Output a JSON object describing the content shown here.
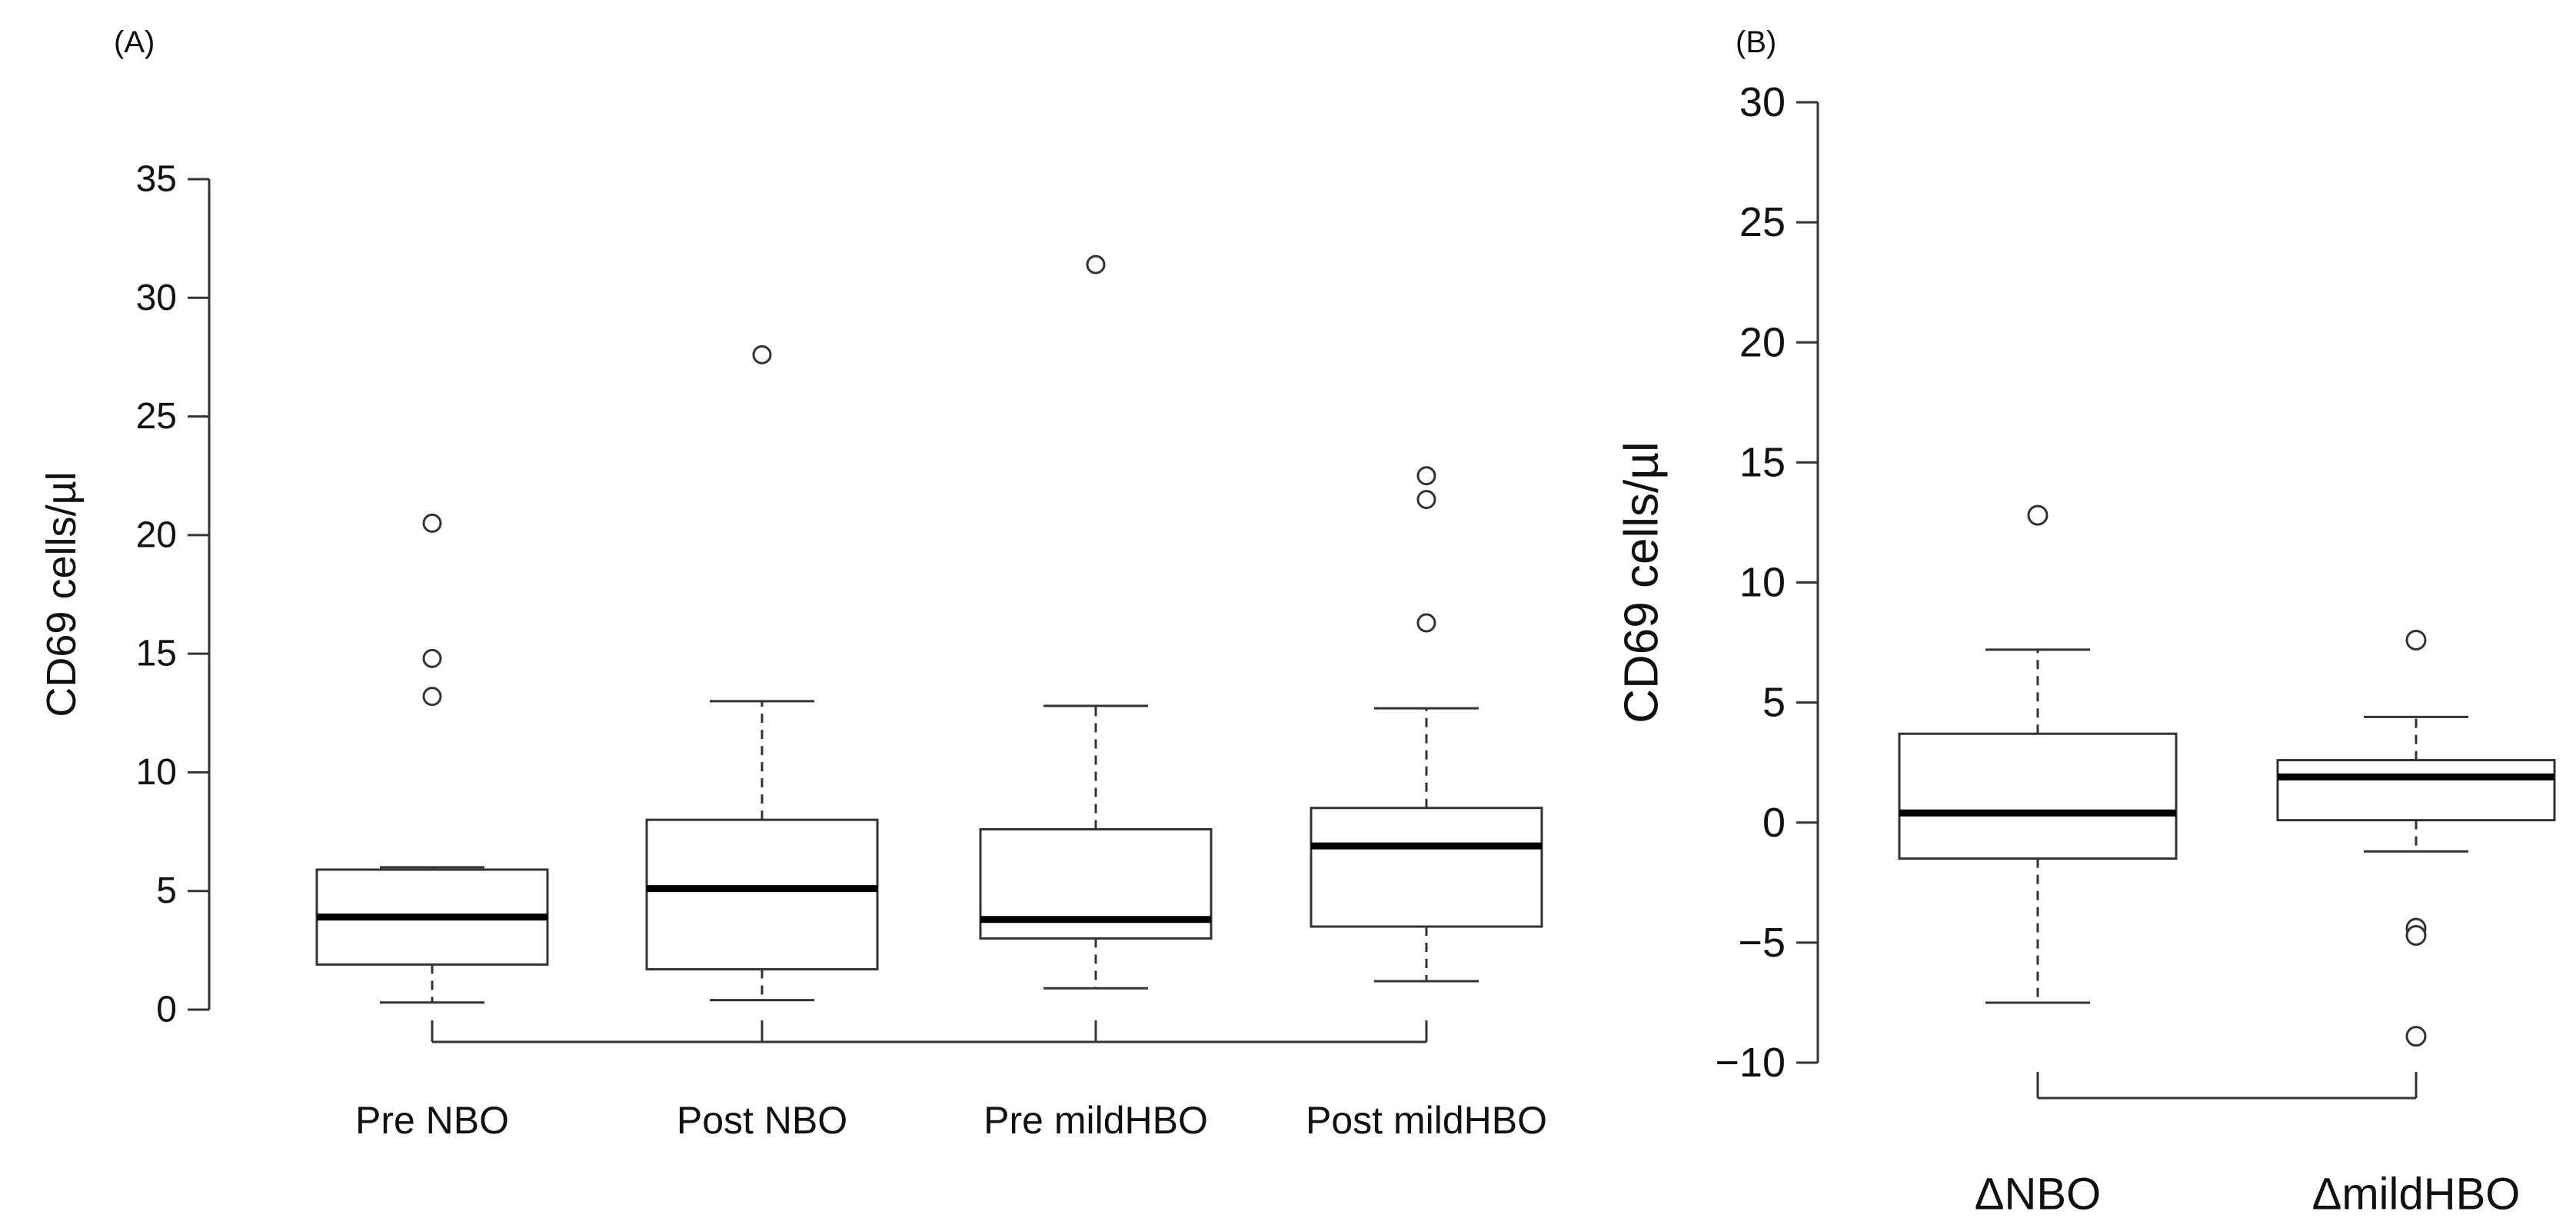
{
  "chart_data": [
    {
      "type": "boxplot",
      "panel_label": "(A)",
      "title": "",
      "xlabel": "",
      "ylabel": "CD69 cells/µl",
      "ylim": [
        0,
        35
      ],
      "yticks": [
        0,
        5,
        10,
        15,
        20,
        25,
        30,
        35
      ],
      "ytick_labels": [
        "0",
        "5",
        "10",
        "15",
        "20",
        "25",
        "30",
        "35"
      ],
      "categories": [
        "Pre NBO",
        "Post NBO",
        "Pre mildHBO",
        "Post mildHBO"
      ],
      "boxes": [
        {
          "category": "Pre NBO",
          "whisker_low": 0.3,
          "q1": 1.9,
          "median": 3.9,
          "q3": 5.9,
          "whisker_high": 6.0,
          "outliers": [
            13.2,
            14.8,
            20.5
          ]
        },
        {
          "category": "Post NBO",
          "whisker_low": 0.4,
          "q1": 1.7,
          "median": 5.1,
          "q3": 8.0,
          "whisker_high": 13.0,
          "outliers": [
            27.6
          ]
        },
        {
          "category": "Pre mildHBO",
          "whisker_low": 0.9,
          "q1": 3.0,
          "median": 3.8,
          "q3": 7.6,
          "whisker_high": 12.8,
          "outliers": [
            31.4
          ]
        },
        {
          "category": "Post mildHBO",
          "whisker_low": 1.2,
          "q1": 3.5,
          "median": 6.9,
          "q3": 8.5,
          "whisker_high": 12.7,
          "outliers": [
            16.3,
            21.5,
            22.5
          ]
        }
      ]
    },
    {
      "type": "boxplot",
      "panel_label": "(B)",
      "title": "",
      "xlabel": "",
      "ylabel": "CD69 cells/µl",
      "ylim": [
        -10,
        30
      ],
      "yticks": [
        -10,
        -5,
        0,
        5,
        10,
        15,
        20,
        25,
        30
      ],
      "ytick_labels": [
        "−10",
        "−5",
        "0",
        "5",
        "10",
        "15",
        "20",
        "25",
        "30"
      ],
      "categories": [
        "ΔNBO",
        "ΔmildHBO"
      ],
      "boxes": [
        {
          "category": "ΔNBO",
          "whisker_low": -7.5,
          "q1": -1.5,
          "median": 0.4,
          "q3": 3.7,
          "whisker_high": 7.2,
          "outliers": [
            12.8
          ]
        },
        {
          "category": "ΔmildHBO",
          "whisker_low": -1.2,
          "q1": 0.1,
          "median": 1.9,
          "q3": 2.6,
          "whisker_high": 4.4,
          "outliers": [
            7.6,
            -4.4,
            -4.7,
            -8.9
          ]
        }
      ]
    }
  ]
}
